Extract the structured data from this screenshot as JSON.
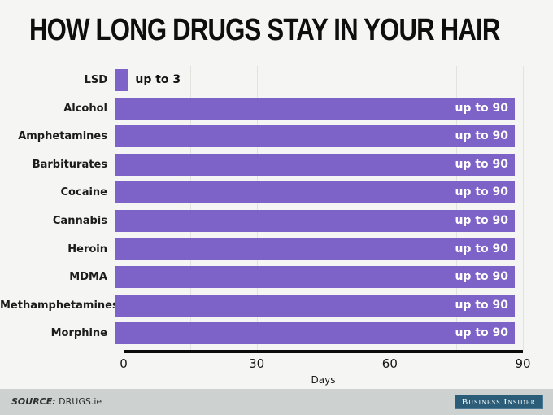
{
  "title": "HOW LONG DRUGS STAY IN YOUR HAIR",
  "chart_data": {
    "type": "bar",
    "orientation": "horizontal",
    "title": "HOW LONG DRUGS STAY IN YOUR HAIR",
    "categories": [
      "LSD",
      "Alcohol",
      "Amphetamines",
      "Barbiturates",
      "Cocaine",
      "Cannabis",
      "Heroin",
      "MDMA",
      "Methamphetamines",
      "Morphine"
    ],
    "values": [
      3,
      90,
      90,
      90,
      90,
      90,
      90,
      90,
      90,
      90
    ],
    "bar_labels": [
      "up to 3",
      "up to 90",
      "up to 90",
      "up to 90",
      "up to 90",
      "up to 90",
      "up to 90",
      "up to 90",
      "up to 90",
      "up to 90"
    ],
    "xlabel": "Days",
    "ylabel": "",
    "xlim": [
      0,
      90
    ],
    "x_ticks": [
      0,
      30,
      60,
      90
    ],
    "gridline_interval": 15,
    "grid": true,
    "legend": false,
    "bar_color": "#7d62c8",
    "inside_label_color": "#ffffff",
    "outside_label_color": "#111111"
  },
  "footer": {
    "source_label": "SOURCE:",
    "source_value": "DRUGS.ie",
    "brand": "Business Insider"
  }
}
